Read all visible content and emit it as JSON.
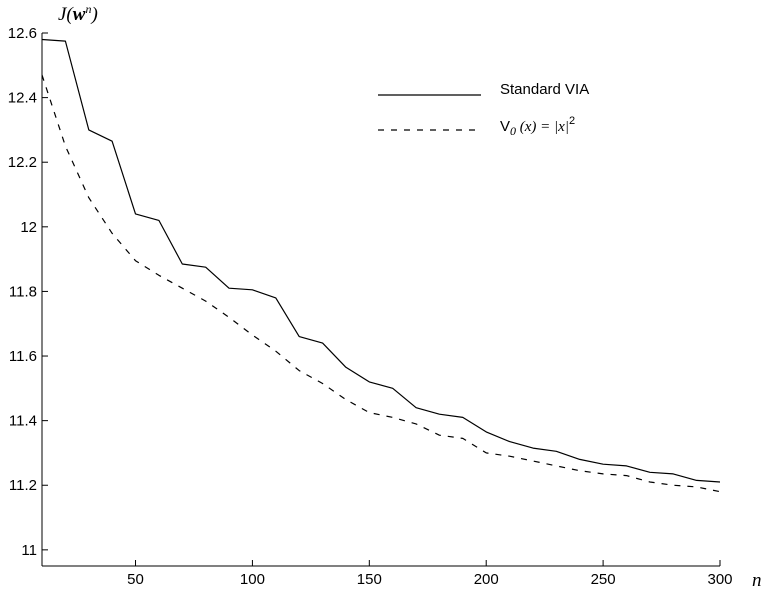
{
  "chart_data": {
    "type": "line",
    "title": "",
    "xlabel": "n",
    "ylabel": {
      "prefix": "J(",
      "bold": "w",
      "sup": "n",
      "suffix": ")"
    },
    "xlim": [
      10,
      300
    ],
    "ylim": [
      10.95,
      12.6
    ],
    "xticks": [
      50,
      100,
      150,
      200,
      250,
      300
    ],
    "xtick_labels": [
      "50",
      "100",
      "150",
      "200",
      "250",
      "300"
    ],
    "yticks": [
      11,
      11.2,
      11.4,
      11.6,
      11.8,
      12,
      12.2,
      12.4,
      12.6
    ],
    "ytick_labels": [
      "11",
      "11.2",
      "11.4",
      "11.6",
      "11.8",
      "12",
      "12.2",
      "12.4",
      "12.6"
    ],
    "grid": false,
    "legend_position": "top-right",
    "x": [
      10,
      20,
      30,
      40,
      50,
      60,
      70,
      80,
      90,
      100,
      110,
      120,
      130,
      140,
      150,
      160,
      170,
      180,
      190,
      200,
      210,
      220,
      230,
      240,
      250,
      260,
      270,
      280,
      290,
      300
    ],
    "series": [
      {
        "name": "Standard VIA",
        "style": "solid",
        "color": "#000000",
        "values": [
          12.58,
          12.575,
          12.3,
          12.265,
          12.04,
          12.02,
          11.885,
          11.875,
          11.81,
          11.805,
          11.78,
          11.66,
          11.64,
          11.565,
          11.52,
          11.5,
          11.44,
          11.42,
          11.41,
          11.365,
          11.335,
          11.315,
          11.305,
          11.28,
          11.265,
          11.26,
          11.24,
          11.235,
          11.215,
          11.21
        ]
      },
      {
        "name_parts": {
          "v": "V",
          "sub": "0",
          "arg": " (x) = |x|",
          "sup": "2"
        },
        "style": "dashed",
        "color": "#000000",
        "values": [
          12.47,
          12.25,
          12.09,
          11.98,
          11.895,
          11.85,
          11.81,
          11.77,
          11.72,
          11.665,
          11.615,
          11.555,
          11.515,
          11.465,
          11.425,
          11.41,
          11.39,
          11.355,
          11.345,
          11.3,
          11.29,
          11.275,
          11.26,
          11.245,
          11.235,
          11.23,
          11.21,
          11.2,
          11.195,
          11.18
        ]
      }
    ]
  }
}
